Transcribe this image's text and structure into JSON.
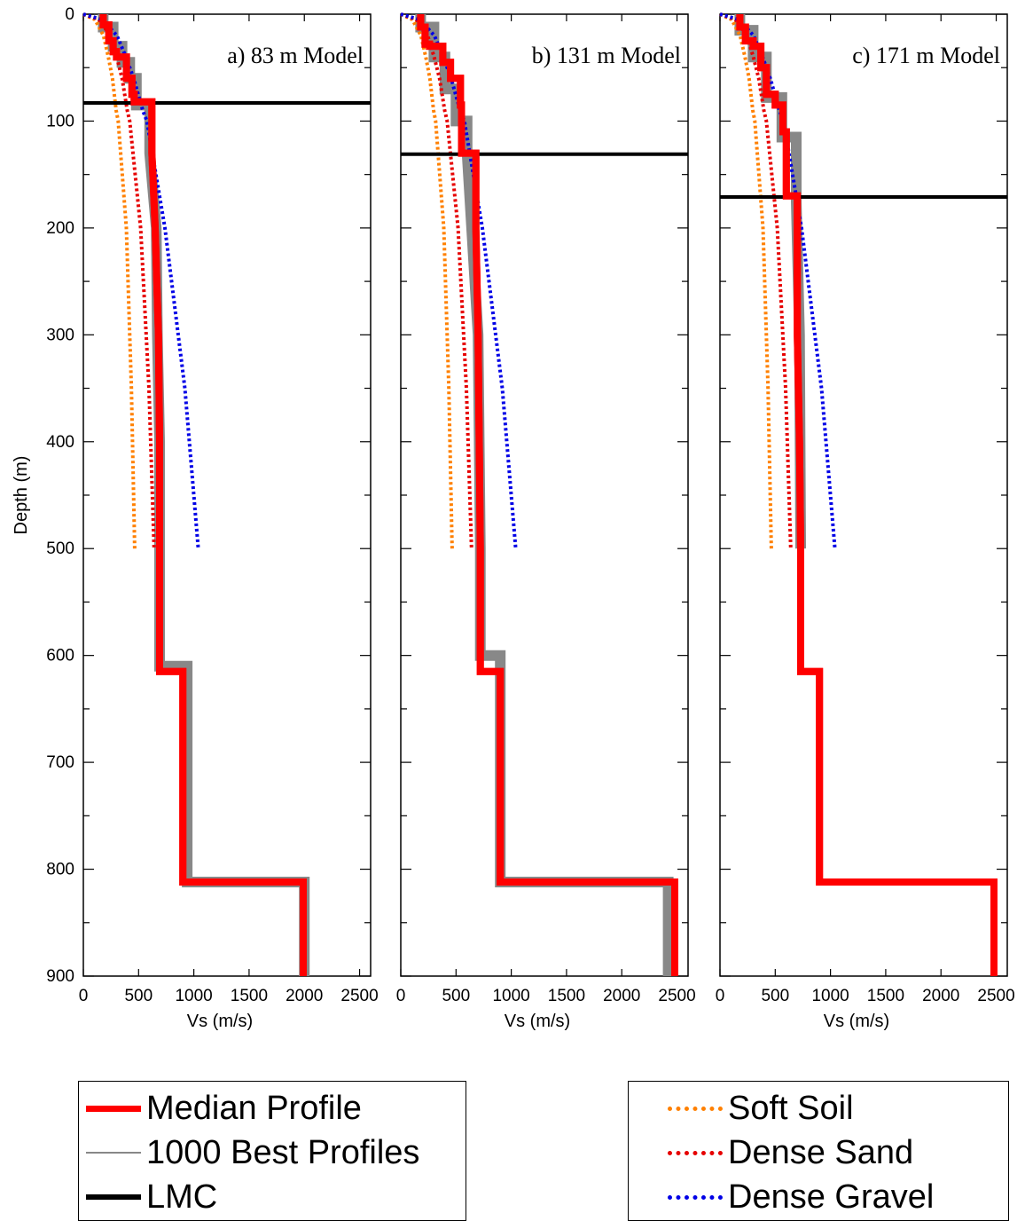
{
  "chart_data": [
    {
      "type": "line",
      "title": "a) 83 m Model",
      "xlabel": "Vs (m/s)",
      "ylabel": "Depth (m)",
      "xlim": [
        0,
        2600
      ],
      "ylim": [
        0,
        900
      ],
      "y_reversed": true,
      "lmc_depth": 83,
      "series": [
        {
          "name": "Median Profile",
          "color": "#ff0000",
          "x": [
            180,
            180,
            230,
            230,
            270,
            270,
            300,
            300,
            390,
            390,
            440,
            440,
            460,
            460,
            620,
            620,
            650,
            680,
            690,
            690,
            900,
            900,
            1990,
            1990
          ],
          "y": [
            0,
            10,
            10,
            25,
            25,
            35,
            35,
            40,
            40,
            60,
            60,
            75,
            75,
            82,
            82,
            130,
            200,
            300,
            400,
            615,
            615,
            812,
            812,
            900
          ]
        },
        {
          "name": "1000 Best Profiles",
          "color": "#888888",
          "x": [
            180,
            180,
            270,
            270,
            350,
            350,
            420,
            420,
            480,
            480,
            600,
            600,
            660,
            670,
            690,
            690,
            940,
            940,
            2000,
            2000
          ],
          "y": [
            0,
            12,
            12,
            30,
            30,
            45,
            45,
            60,
            60,
            85,
            85,
            130,
            200,
            300,
            400,
            610,
            610,
            812,
            812,
            900
          ]
        },
        {
          "name": "Soft Soil",
          "color": "#ff8000",
          "x": [
            0,
            105,
            182,
            226,
            263,
            297,
            315,
            389,
            435,
            465
          ],
          "y": [
            0,
            5,
            20,
            40,
            60,
            90,
            100,
            200,
            350,
            500
          ]
        },
        {
          "name": "Dense Sand",
          "color": "#e60000",
          "x": [
            0,
            140,
            243,
            302,
            351,
            397,
            420,
            518,
            594,
            640
          ],
          "y": [
            0,
            5,
            20,
            40,
            60,
            90,
            100,
            200,
            350,
            500
          ]
        },
        {
          "name": "Dense Gravel",
          "color": "#0000e6",
          "x": [
            0,
            170,
            304,
            385,
            455,
            538,
            575,
            738,
            919,
            1040
          ],
          "y": [
            0,
            5,
            20,
            40,
            60,
            90,
            100,
            200,
            350,
            500
          ]
        }
      ]
    },
    {
      "type": "line",
      "title": "b) 131 m Model",
      "xlabel": "Vs (m/s)",
      "xlim": [
        0,
        2600
      ],
      "ylim": [
        0,
        900
      ],
      "y_reversed": true,
      "lmc_depth": 131,
      "series": [
        {
          "name": "Median Profile",
          "color": "#ff0000",
          "x": [
            180,
            180,
            220,
            220,
            260,
            260,
            380,
            380,
            450,
            450,
            540,
            540,
            550,
            550,
            680,
            680,
            700,
            710,
            720,
            720,
            900,
            900,
            2480,
            2480
          ],
          "y": [
            0,
            12,
            12,
            28,
            28,
            30,
            30,
            45,
            45,
            60,
            60,
            85,
            85,
            130,
            130,
            200,
            300,
            400,
            500,
            615,
            615,
            812,
            812,
            900
          ]
        },
        {
          "name": "1000 Best Profiles",
          "color": "#888888",
          "x": [
            180,
            180,
            300,
            300,
            400,
            400,
            500,
            500,
            600,
            600,
            700,
            720,
            720,
            900,
            900,
            2420,
            2420
          ],
          "y": [
            0,
            12,
            12,
            40,
            40,
            70,
            70,
            100,
            100,
            130,
            300,
            500,
            600,
            600,
            812,
            812,
            900
          ]
        },
        {
          "name": "Soft Soil",
          "color": "#ff8000",
          "x": [
            0,
            105,
            182,
            226,
            263,
            297,
            315,
            389,
            435,
            465
          ],
          "y": [
            0,
            5,
            20,
            40,
            60,
            90,
            100,
            200,
            350,
            500
          ]
        },
        {
          "name": "Dense Sand",
          "color": "#e60000",
          "x": [
            0,
            140,
            243,
            302,
            351,
            397,
            420,
            518,
            594,
            640
          ],
          "y": [
            0,
            5,
            20,
            40,
            60,
            90,
            100,
            200,
            350,
            500
          ]
        },
        {
          "name": "Dense Gravel",
          "color": "#0000e6",
          "x": [
            0,
            170,
            304,
            385,
            455,
            538,
            575,
            738,
            919,
            1040
          ],
          "y": [
            0,
            5,
            20,
            40,
            60,
            90,
            100,
            200,
            350,
            500
          ]
        }
      ]
    },
    {
      "type": "line",
      "title": "c) 171 m Model",
      "xlabel": "Vs (m/s)",
      "xlim": [
        0,
        2600
      ],
      "ylim": [
        0,
        900
      ],
      "y_reversed": true,
      "lmc_depth": 171,
      "series": [
        {
          "name": "Median Profile",
          "color": "#ff0000",
          "x": [
            180,
            180,
            230,
            230,
            300,
            300,
            370,
            370,
            420,
            420,
            500,
            500,
            570,
            570,
            600,
            600,
            700,
            700,
            720,
            730,
            730,
            900,
            900,
            2480,
            2480
          ],
          "y": [
            0,
            12,
            12,
            25,
            25,
            30,
            30,
            50,
            50,
            75,
            75,
            85,
            85,
            110,
            110,
            170,
            170,
            300,
            400,
            500,
            615,
            615,
            812,
            812,
            900
          ]
        },
        {
          "name": "1000 Best Profiles",
          "color": "#888888",
          "x": [
            180,
            180,
            300,
            300,
            420,
            420,
            560,
            560,
            690,
            690,
            720,
            730
          ],
          "y": [
            0,
            15,
            15,
            40,
            40,
            78,
            78,
            115,
            115,
            175,
            300,
            500
          ]
        },
        {
          "name": "Soft Soil",
          "color": "#ff8000",
          "x": [
            0,
            105,
            182,
            226,
            263,
            297,
            315,
            389,
            435,
            465
          ],
          "y": [
            0,
            5,
            20,
            40,
            60,
            90,
            100,
            200,
            350,
            500
          ]
        },
        {
          "name": "Dense Sand",
          "color": "#e60000",
          "x": [
            0,
            140,
            243,
            302,
            351,
            397,
            420,
            518,
            594,
            640
          ],
          "y": [
            0,
            5,
            20,
            40,
            60,
            90,
            100,
            200,
            350,
            500
          ]
        },
        {
          "name": "Dense Gravel",
          "color": "#0000e6",
          "x": [
            0,
            170,
            304,
            385,
            455,
            538,
            575,
            738,
            919,
            1040
          ],
          "y": [
            0,
            5,
            20,
            40,
            60,
            90,
            100,
            200,
            350,
            500
          ]
        }
      ]
    }
  ],
  "axes": {
    "x_ticks": [
      "0",
      "500",
      "1000",
      "1500",
      "2000",
      "2500"
    ],
    "x_tick_values": [
      0,
      500,
      1000,
      1500,
      2000,
      2500
    ],
    "y_ticks": [
      "0",
      "100",
      "200",
      "300",
      "400",
      "500",
      "600",
      "700",
      "800",
      "900"
    ],
    "y_tick_values": [
      0,
      100,
      200,
      300,
      400,
      500,
      600,
      700,
      800,
      900
    ]
  },
  "legend_left": {
    "items": [
      {
        "label": "Median Profile",
        "color": "#ff0000",
        "style": "solid-thick"
      },
      {
        "label": "1000 Best Profiles",
        "color": "#888888",
        "style": "solid-thin"
      },
      {
        "label": "LMC",
        "color": "#000000",
        "style": "solid-thick"
      }
    ]
  },
  "legend_right": {
    "items": [
      {
        "label": "Soft Soil",
        "color": "#ff8000",
        "style": "dotted"
      },
      {
        "label": "Dense Sand",
        "color": "#e60000",
        "style": "dotted"
      },
      {
        "label": "Dense Gravel",
        "color": "#0000e6",
        "style": "dotted"
      }
    ]
  },
  "colors": {
    "median": "#ff0000",
    "best": "#888888",
    "lmc": "#000000",
    "soft_soil": "#ff8000",
    "dense_sand": "#e60000",
    "dense_gravel": "#0000e6"
  }
}
